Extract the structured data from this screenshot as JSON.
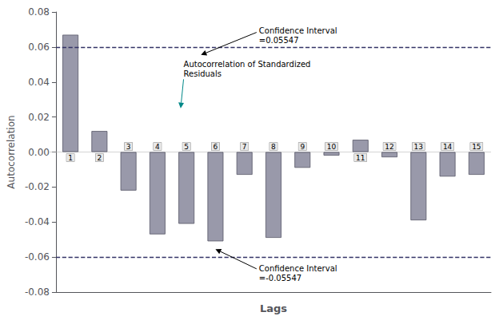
{
  "chart_data": {
    "type": "bar",
    "categories": [
      "1",
      "2",
      "3",
      "4",
      "5",
      "6",
      "7",
      "8",
      "9",
      "10",
      "11",
      "12",
      "13",
      "14",
      "15"
    ],
    "values": [
      0.067,
      0.012,
      -0.022,
      -0.047,
      -0.041,
      -0.051,
      -0.013,
      -0.049,
      -0.009,
      -0.002,
      0.007,
      -0.003,
      -0.039,
      -0.014,
      -0.013
    ],
    "color": "#9999aa",
    "xlabel": "Lags",
    "ylabel": "Autocorrelation",
    "ylim": [
      -0.08,
      0.08
    ],
    "yticks": [
      -0.08,
      -0.06,
      -0.04,
      -0.02,
      {
        "value": 0.0,
        "label": "0.00"
      },
      0.02,
      0.04,
      0.06,
      0.08
    ],
    "grid": false,
    "hlines": [
      {
        "y": 0.05547,
        "color": "#333366",
        "line_style": "dashed"
      },
      {
        "y": -0.05547,
        "color": "#333366",
        "line_style": "dashed"
      }
    ],
    "annotations": [
      {
        "text": "Confidence Interval\n=0.05547"
      },
      {
        "text": "Confidence Interval\n=-0.05547"
      },
      {
        "text": "Autocorrelation of Standardized\nResiduals"
      }
    ]
  }
}
